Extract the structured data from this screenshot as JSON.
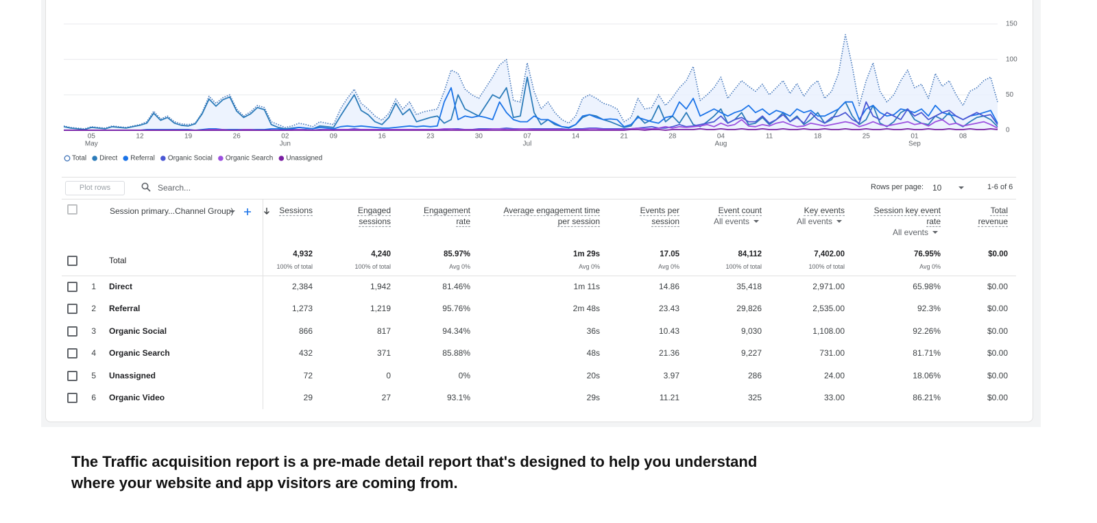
{
  "chart_data": {
    "type": "line",
    "categories": [
      null,
      null,
      null,
      null,
      "05",
      null,
      null,
      null,
      null,
      null,
      null,
      "12",
      null,
      null,
      null,
      null,
      null,
      null,
      "19",
      null,
      null,
      null,
      null,
      null,
      null,
      "26",
      null,
      null,
      null,
      null,
      null,
      null,
      "02",
      null,
      null,
      null,
      null,
      null,
      null,
      "09",
      null,
      null,
      null,
      null,
      null,
      null,
      "16",
      null,
      null,
      null,
      null,
      null,
      null,
      "23",
      null,
      null,
      null,
      null,
      null,
      null,
      "30",
      null,
      null,
      null,
      null,
      null,
      null,
      "07",
      null,
      null,
      null,
      null,
      null,
      null,
      "14",
      null,
      null,
      null,
      null,
      null,
      null,
      "21",
      null,
      null,
      null,
      null,
      null,
      null,
      "28",
      null,
      null,
      null,
      null,
      null,
      null,
      "04",
      null,
      null,
      null,
      null,
      null,
      null,
      "11",
      null,
      null,
      null,
      null,
      null,
      null,
      "18",
      null,
      null,
      null,
      null,
      null,
      null,
      "25",
      null,
      null,
      null,
      null,
      null,
      null,
      "01",
      null,
      null,
      null,
      null,
      null,
      null,
      "08",
      null,
      null,
      null,
      null,
      null
    ],
    "month_labels": [
      {
        "index": 4,
        "label": "May"
      },
      {
        "index": 32,
        "label": "Jun"
      },
      {
        "index": 67,
        "label": "Jul"
      },
      {
        "index": 95,
        "label": "Aug"
      },
      {
        "index": 123,
        "label": "Sep"
      }
    ],
    "ylim": [
      0,
      150
    ],
    "yticks": [
      0,
      50,
      100,
      150
    ],
    "grid": true,
    "series": [
      {
        "name": "Total",
        "color": "#3f73b8",
        "dashed": true,
        "area_color": "#e8f0fe",
        "legend_marker": "hollow",
        "values": [
          6,
          4,
          3,
          2,
          5,
          4,
          3,
          6,
          5,
          4,
          6,
          8,
          12,
          27,
          16,
          20,
          12,
          9,
          8,
          10,
          25,
          48,
          38,
          46,
          50,
          30,
          20,
          26,
          35,
          32,
          12,
          8,
          4,
          6,
          10,
          8,
          5,
          12,
          10,
          8,
          30,
          45,
          58,
          38,
          30,
          20,
          14,
          24,
          44,
          30,
          40,
          22,
          26,
          28,
          30,
          55,
          85,
          80,
          58,
          50,
          45,
          60,
          75,
          92,
          100,
          42,
          40,
          95,
          55,
          30,
          40,
          25,
          15,
          10,
          20,
          45,
          50,
          45,
          38,
          35,
          30,
          12,
          18,
          45,
          30,
          32,
          50,
          35,
          46,
          60,
          70,
          90,
          42,
          50,
          60,
          75,
          45,
          58,
          70,
          62,
          55,
          65,
          50,
          60,
          70,
          52,
          66,
          48,
          62,
          70,
          45,
          55,
          80,
          135,
          90,
          35,
          70,
          95,
          55,
          40,
          50,
          70,
          85,
          60,
          65,
          45,
          80,
          62,
          70,
          50,
          35,
          55,
          60,
          70,
          75,
          40
        ]
      },
      {
        "name": "Direct",
        "color": "#2b7bb9",
        "values": [
          5,
          3,
          2,
          1,
          4,
          3,
          2,
          5,
          4,
          3,
          5,
          7,
          10,
          24,
          14,
          18,
          10,
          7,
          6,
          9,
          23,
          44,
          34,
          43,
          47,
          27,
          18,
          23,
          32,
          29,
          8,
          4,
          2,
          3,
          4,
          3,
          2,
          6,
          5,
          4,
          20,
          35,
          50,
          28,
          22,
          12,
          8,
          18,
          38,
          22,
          30,
          12,
          15,
          18,
          20,
          10,
          15,
          50,
          30,
          25,
          20,
          35,
          50,
          45,
          60,
          18,
          20,
          75,
          25,
          8,
          15,
          8,
          5,
          3,
          8,
          18,
          22,
          20,
          15,
          12,
          8,
          4,
          6,
          20,
          10,
          15,
          35,
          12,
          20,
          10,
          25,
          8,
          5,
          12,
          20,
          30,
          10,
          15,
          25,
          8,
          10,
          18,
          8,
          15,
          25,
          12,
          20,
          8,
          15,
          25,
          10,
          15,
          30,
          40,
          20,
          8,
          15,
          35,
          10,
          5,
          12,
          25,
          30,
          15,
          10,
          8,
          20,
          15,
          25,
          10,
          5,
          12,
          18,
          20,
          15,
          5
        ]
      },
      {
        "name": "Referral",
        "color": "#1a73e8",
        "values": [
          0,
          0,
          0,
          0,
          0,
          0,
          0,
          0,
          0,
          0,
          0,
          0,
          1,
          1,
          1,
          1,
          1,
          1,
          1,
          0,
          1,
          2,
          2,
          1,
          1,
          1,
          1,
          1,
          1,
          1,
          2,
          2,
          1,
          2,
          4,
          3,
          2,
          4,
          3,
          2,
          5,
          6,
          5,
          6,
          5,
          4,
          3,
          3,
          4,
          5,
          6,
          5,
          6,
          5,
          6,
          40,
          60,
          15,
          20,
          18,
          20,
          18,
          15,
          40,
          25,
          15,
          12,
          12,
          20,
          15,
          15,
          10,
          5,
          4,
          8,
          20,
          22,
          18,
          15,
          16,
          15,
          5,
          8,
          18,
          15,
          12,
          10,
          18,
          20,
          40,
          30,
          45,
          20,
          25,
          30,
          25,
          20,
          25,
          28,
          35,
          25,
          30,
          22,
          28,
          25,
          20,
          30,
          25,
          28,
          20,
          20,
          25,
          30,
          40,
          40,
          15,
          30,
          35,
          25,
          20,
          22,
          30,
          28,
          25,
          30,
          20,
          35,
          25,
          22,
          20,
          15,
          20,
          22,
          25,
          28,
          10
        ]
      },
      {
        "name": "Organic Social",
        "color": "#4a57d4",
        "values": [
          0,
          0,
          0,
          0,
          0,
          0,
          0,
          0,
          0,
          0,
          0,
          0,
          0,
          0,
          0,
          0,
          0,
          0,
          0,
          0,
          0,
          0,
          0,
          0,
          0,
          0,
          0,
          0,
          0,
          0,
          0,
          0,
          0,
          1,
          1,
          1,
          0,
          1,
          1,
          1,
          1,
          1,
          2,
          1,
          1,
          1,
          1,
          1,
          1,
          1,
          1,
          1,
          1,
          1,
          1,
          1,
          2,
          2,
          1,
          1,
          2,
          2,
          2,
          2,
          3,
          2,
          2,
          2,
          2,
          2,
          2,
          2,
          2,
          1,
          2,
          2,
          3,
          3,
          2,
          2,
          2,
          2,
          2,
          3,
          4,
          5,
          3,
          3,
          5,
          8,
          5,
          6,
          8,
          10,
          12,
          20,
          10,
          15,
          18,
          12,
          12,
          20,
          10,
          15,
          22,
          12,
          18,
          10,
          25,
          15,
          10,
          18,
          20,
          25,
          15,
          10,
          40,
          20,
          15,
          25,
          20,
          15,
          30,
          20,
          25,
          15,
          20,
          25,
          28,
          20,
          15,
          20,
          25,
          20,
          22,
          8
        ]
      },
      {
        "name": "Organic Search",
        "color": "#9b4fdf",
        "values": [
          0,
          0,
          0,
          0,
          0,
          0,
          0,
          0,
          0,
          0,
          0,
          0,
          0,
          0,
          0,
          0,
          0,
          0,
          0,
          0,
          0,
          1,
          1,
          1,
          0,
          0,
          1,
          1,
          0,
          0,
          0,
          0,
          0,
          0,
          1,
          0,
          0,
          0,
          1,
          0,
          1,
          1,
          1,
          1,
          1,
          1,
          1,
          1,
          1,
          1,
          1,
          1,
          1,
          1,
          1,
          2,
          2,
          1,
          1,
          1,
          1,
          1,
          2,
          2,
          1,
          1,
          2,
          2,
          1,
          1,
          1,
          1,
          1,
          1,
          1,
          1,
          2,
          2,
          1,
          1,
          1,
          1,
          2,
          3,
          2,
          2,
          3,
          5,
          3,
          5,
          4,
          5,
          6,
          8,
          5,
          10,
          6,
          8,
          15,
          6,
          5,
          8,
          6,
          10,
          12,
          8,
          5,
          6,
          10,
          8,
          6,
          8,
          10,
          12,
          10,
          5,
          8,
          12,
          8,
          6,
          8,
          10,
          12,
          8,
          10,
          6,
          12,
          15,
          8,
          10,
          6,
          8,
          10,
          12,
          8,
          3
        ]
      },
      {
        "name": "Unassigned",
        "color": "#7a1fa2",
        "values": [
          0,
          0,
          0,
          0,
          0,
          0,
          0,
          0,
          0,
          0,
          0,
          0,
          0,
          0,
          0,
          0,
          0,
          0,
          0,
          0,
          0,
          0,
          0,
          0,
          0,
          0,
          0,
          0,
          0,
          0,
          0,
          0,
          0,
          0,
          0,
          0,
          0,
          0,
          0,
          0,
          0,
          0,
          0,
          0,
          0,
          0,
          0,
          0,
          0,
          0,
          0,
          0,
          0,
          0,
          0,
          0,
          0,
          0,
          0,
          0,
          0,
          0,
          0,
          0,
          0,
          0,
          0,
          0,
          0,
          0,
          0,
          0,
          0,
          0,
          0,
          0,
          0,
          0,
          0,
          0,
          0,
          0,
          1,
          1,
          0,
          1,
          1,
          0,
          1,
          1,
          1,
          1,
          2,
          1,
          1,
          2,
          1,
          1,
          2,
          1,
          1,
          2,
          1,
          1,
          2,
          1,
          1,
          2,
          1,
          1,
          2,
          1,
          1,
          2,
          1,
          1,
          2,
          1,
          1,
          2,
          1,
          1,
          2,
          1,
          1,
          2,
          1,
          1,
          2,
          1,
          1,
          2,
          1,
          1,
          2,
          1
        ]
      }
    ]
  },
  "toolbar": {
    "plot_rows": "Plot rows",
    "search": "Search...",
    "rows_per_page_label": "Rows per page:",
    "rows_per_page": "10",
    "pagination": "1-6 of 6"
  },
  "table": {
    "dimension": "Session primary...Channel Group)",
    "columns": [
      {
        "label": "Sessions"
      },
      {
        "label": "Engaged sessions"
      },
      {
        "label": "Engagement rate"
      },
      {
        "label": "Average engagement time per session"
      },
      {
        "label": "Events per session"
      },
      {
        "label": "Event count",
        "sub": "All events"
      },
      {
        "label": "Key events",
        "sub": "All events"
      },
      {
        "label": "Session key event rate",
        "sub": "All events"
      },
      {
        "label": "Total revenue"
      }
    ],
    "total": {
      "label": "Total",
      "values": [
        "4,932",
        "4,240",
        "85.97%",
        "1m 29s",
        "17.05",
        "84,112",
        "7,402.00",
        "76.95%",
        "$0.00"
      ],
      "notes": [
        "100% of total",
        "100% of total",
        "Avg 0%",
        "Avg 0%",
        "Avg 0%",
        "100% of total",
        "100% of total",
        "Avg 0%"
      ]
    },
    "rows": [
      [
        1,
        "Direct",
        "2,384",
        "1,942",
        "81.46%",
        "1m 11s",
        "14.86",
        "35,418",
        "2,971.00",
        "65.98%",
        "$0.00"
      ],
      [
        2,
        "Referral",
        "1,273",
        "1,219",
        "95.76%",
        "2m 48s",
        "23.43",
        "29,826",
        "2,535.00",
        "92.3%",
        "$0.00"
      ],
      [
        3,
        "Organic Social",
        "866",
        "817",
        "94.34%",
        "36s",
        "10.43",
        "9,030",
        "1,108.00",
        "92.26%",
        "$0.00"
      ],
      [
        4,
        "Organic Search",
        "432",
        "371",
        "85.88%",
        "48s",
        "21.36",
        "9,227",
        "731.00",
        "81.71%",
        "$0.00"
      ],
      [
        5,
        "Unassigned",
        "72",
        "0",
        "0%",
        "20s",
        "3.97",
        "286",
        "24.00",
        "18.06%",
        "$0.00"
      ],
      [
        6,
        "Organic Video",
        "29",
        "27",
        "93.1%",
        "29s",
        "11.21",
        "325",
        "33.00",
        "86.21%",
        "$0.00"
      ]
    ]
  },
  "caption": [
    "The Traffic acquisition report is a pre-made detail report that's designed to help you understand",
    "where your website and app visitors are coming from."
  ]
}
